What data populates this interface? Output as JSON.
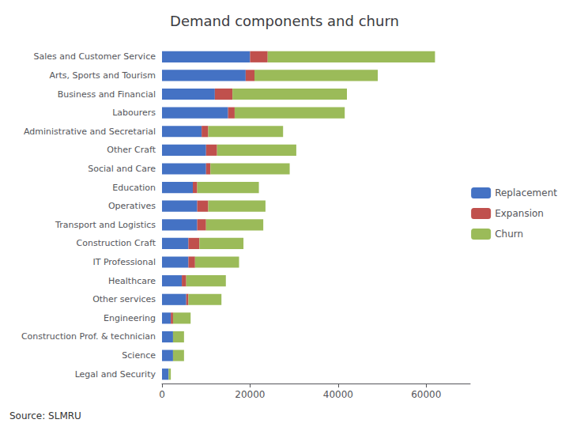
{
  "chart_data": {
    "type": "bar",
    "orientation": "horizontal",
    "stacked": true,
    "title": "Demand components and churn",
    "annotations": [
      "Source: SLMRU"
    ],
    "categories": [
      "Sales and Customer Service",
      "Arts, Sports and Tourism",
      "Business and Financial",
      "Labourers",
      "Administrative and Secretarial",
      "Other Craft",
      "Social and Care",
      "Education",
      "Operatives",
      "Transport and Logistics",
      "Construction Craft",
      "IT Professional",
      "Healthcare",
      "Other services",
      "Engineering",
      "Construction Prof. & technician",
      "Science",
      "Legal and Security"
    ],
    "series": [
      {
        "name": "Replacement",
        "color": "#4472C4",
        "values": [
          20000,
          19000,
          12000,
          15000,
          9000,
          10000,
          10000,
          7000,
          8000,
          8000,
          6000,
          6000,
          4500,
          5500,
          2000,
          2500,
          2500,
          1500
        ]
      },
      {
        "name": "Expansion",
        "color": "#C0504D",
        "values": [
          4000,
          2000,
          4000,
          1500,
          1500,
          2500,
          1000,
          1000,
          2500,
          2000,
          2500,
          1500,
          1000,
          500,
          500,
          0,
          0,
          0
        ]
      },
      {
        "name": "Churn",
        "color": "#9BBB59",
        "values": [
          38000,
          28000,
          26000,
          25000,
          17000,
          18000,
          18000,
          14000,
          13000,
          13000,
          10000,
          10000,
          9000,
          7500,
          4000,
          2500,
          2500,
          500
        ]
      }
    ],
    "xlim": [
      0,
      70000
    ],
    "xticks": [
      0,
      20000,
      40000,
      60000
    ],
    "grid": false,
    "legend": "right"
  }
}
